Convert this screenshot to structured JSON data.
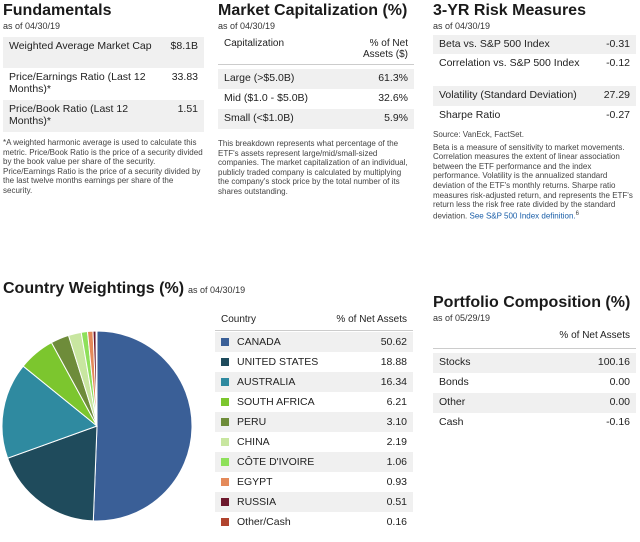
{
  "fundamentals": {
    "title": "Fundamentals",
    "as_of": "as of 04/30/19",
    "rows": [
      {
        "label": "Weighted Average Market Cap",
        "value": "$8.1B"
      },
      {
        "label": "Price/Earnings Ratio (Last 12 Months)*",
        "value": "33.83"
      },
      {
        "label": "Price/Book Ratio (Last 12 Months)*",
        "value": "1.51"
      }
    ],
    "footnote": "*A weighted harmonic average is used to calculate this metric. Price/Book Ratio is the price of a security divided by the book value per share of the security. Price/Earnings Ratio is the price of a security divided by the last twelve months earnings per share of the security."
  },
  "market_cap": {
    "title": "Market Capitalization (%)",
    "as_of": "as of 04/30/19",
    "col1": "Capitalization",
    "col2": "% of Net Assets ($)",
    "rows": [
      {
        "label": "Large (>$5.0B)",
        "value": "61.3%"
      },
      {
        "label": "Mid ($1.0 - $5.0B)",
        "value": "32.6%"
      },
      {
        "label": "Small (<$1.0B)",
        "value": "5.9%"
      }
    ],
    "footnote": "This breakdown represents what percentage of the ETF's assets represent large/mid/small-sized companies. The market capitalization of an individual, publicly traded company is calculated by multiplying the company's stock price by the total number of its shares outstanding."
  },
  "risk": {
    "title": "3-YR Risk Measures",
    "as_of": "as of 04/30/19",
    "rows": [
      {
        "label": "Beta vs. S&P 500 Index",
        "value": "-0.31"
      },
      {
        "label": "Correlation vs. S&P 500 Index",
        "value": "-0.12"
      },
      {
        "label": "Volatility (Standard Deviation)",
        "value": "27.29"
      },
      {
        "label": "Sharpe Ratio",
        "value": "-0.27"
      }
    ],
    "source": "Source: VanEck, FactSet.",
    "footnote": "Beta is a measure of sensitivity to market movements. Correlation measures the extent of linear association between the ETF performance and the index performance. Volatility is the annualized standard deviation of the ETF's monthly returns. Sharpe ratio measures risk-adjusted return, and represents the ETF's return less the risk free rate divided by the standard deviation.",
    "link_text": "See S&P 500 Index definition.",
    "link_sup": "6"
  },
  "country": {
    "title": "Country Weightings (%)",
    "as_of": "as of 04/30/19",
    "col1": "Country",
    "col2": "% of Net Assets",
    "rows": [
      {
        "name": "CANADA",
        "value": "50.62",
        "color": "#3a5f97"
      },
      {
        "name": "UNITED STATES",
        "value": "18.88",
        "color": "#1f4b5c"
      },
      {
        "name": "AUSTRALIA",
        "value": "16.34",
        "color": "#2f8aa0"
      },
      {
        "name": "SOUTH AFRICA",
        "value": "6.21",
        "color": "#7cc62e"
      },
      {
        "name": "PERU",
        "value": "3.10",
        "color": "#6e8c3a"
      },
      {
        "name": "CHINA",
        "value": "2.19",
        "color": "#c8e6a0"
      },
      {
        "name": "CÔTE D'IVOIRE",
        "value": "1.06",
        "color": "#8ee05a"
      },
      {
        "name": "EGYPT",
        "value": "0.93",
        "color": "#e48a5a"
      },
      {
        "name": "RUSSIA",
        "value": "0.51",
        "color": "#6e1a2e"
      },
      {
        "name": "Other/Cash",
        "value": "0.16",
        "color": "#b0442e"
      }
    ]
  },
  "chart_data": {
    "type": "pie",
    "title": "Country Weightings (%)",
    "categories": [
      "CANADA",
      "UNITED STATES",
      "AUSTRALIA",
      "SOUTH AFRICA",
      "PERU",
      "CHINA",
      "CÔTE D'IVOIRE",
      "EGYPT",
      "RUSSIA",
      "Other/Cash"
    ],
    "values": [
      50.62,
      18.88,
      16.34,
      6.21,
      3.1,
      2.19,
      1.06,
      0.93,
      0.51,
      0.16
    ],
    "colors": [
      "#3a5f97",
      "#1f4b5c",
      "#2f8aa0",
      "#7cc62e",
      "#6e8c3a",
      "#c8e6a0",
      "#8ee05a",
      "#e48a5a",
      "#6e1a2e",
      "#b0442e"
    ]
  },
  "portfolio": {
    "title": "Portfolio Composition (%)",
    "as_of": "as of 05/29/19",
    "col2": "% of Net Assets",
    "rows": [
      {
        "label": "Stocks",
        "value": "100.16"
      },
      {
        "label": "Bonds",
        "value": "0.00"
      },
      {
        "label": "Other",
        "value": "0.00"
      },
      {
        "label": "Cash",
        "value": "-0.16"
      }
    ]
  }
}
